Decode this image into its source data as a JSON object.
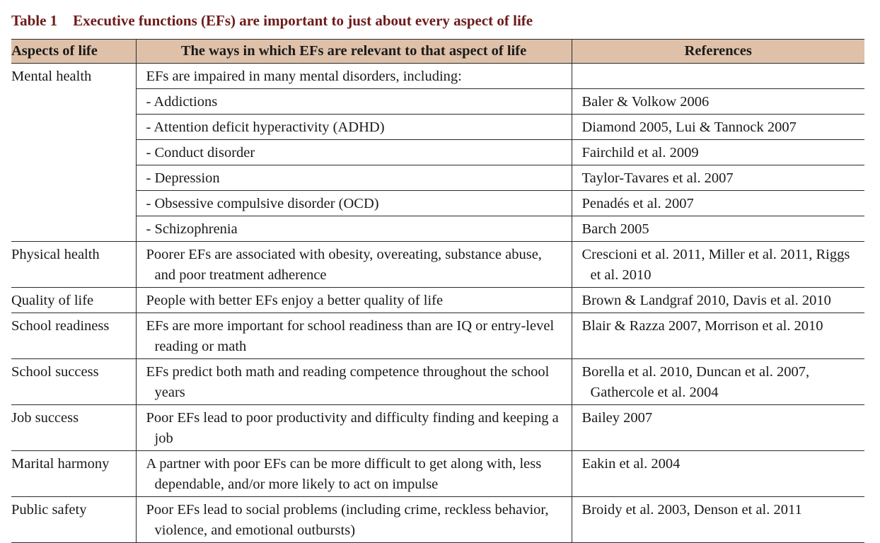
{
  "caption": {
    "number": "Table 1",
    "title": "Executive functions (EFs) are important to just about every aspect of life"
  },
  "headers": {
    "aspect": "Aspects of life",
    "ways": "The ways in which EFs are relevant to that aspect of life",
    "refs": "References"
  },
  "mental_health": {
    "aspect": "Mental health",
    "intro": "EFs are impaired in many mental disorders, including:",
    "rows": [
      {
        "disorder": "- Addictions",
        "refs": "Baler & Volkow 2006"
      },
      {
        "disorder": "- Attention deficit hyperactivity (ADHD)",
        "refs": "Diamond 2005, Lui & Tannock 2007"
      },
      {
        "disorder": "- Conduct disorder",
        "refs": "Fairchild et al. 2009"
      },
      {
        "disorder": "- Depression",
        "refs": "Taylor-Tavares et al. 2007"
      },
      {
        "disorder": "- Obsessive compulsive disorder (OCD)",
        "refs": "Penadés et al. 2007"
      },
      {
        "disorder": "- Schizophrenia",
        "refs": "Barch 2005"
      }
    ]
  },
  "rows": [
    {
      "aspect": "Physical health",
      "ways": "Poorer EFs are associated with obesity, overeating, substance abuse, and poor treatment adherence",
      "refs": "Crescioni et al. 2011, Miller et al. 2011, Riggs et al. 2010"
    },
    {
      "aspect": "Quality of life",
      "ways": "People with better EFs enjoy a better quality of life",
      "refs": "Brown & Landgraf 2010, Davis et al. 2010"
    },
    {
      "aspect": "School readiness",
      "ways": "EFs are more important for school readiness than are IQ or entry-level reading or math",
      "refs": "Blair & Razza 2007, Morrison et al. 2010"
    },
    {
      "aspect": "School success",
      "ways": "EFs predict both math and reading competence throughout the school years",
      "refs": "Borella et al. 2010, Duncan et al. 2007, Gathercole et al. 2004"
    },
    {
      "aspect": "Job success",
      "ways": "Poor EFs lead to poor productivity and difficulty finding and keeping a job",
      "refs": "Bailey 2007"
    },
    {
      "aspect": "Marital harmony",
      "ways": "A partner with poor EFs can be more difficult to get along with, less dependable, and/or more likely to act on impulse",
      "refs": "Eakin et al. 2004"
    },
    {
      "aspect": "Public safety",
      "ways": "Poor EFs lead to social problems (including crime, reckless behavior, violence, and emotional outbursts)",
      "refs": "Broidy et al. 2003, Denson et al. 2011"
    }
  ],
  "colors": {
    "caption": "#6e1a1a",
    "header_bg": "#dfc1a9",
    "rule": "#2a2a2a"
  }
}
